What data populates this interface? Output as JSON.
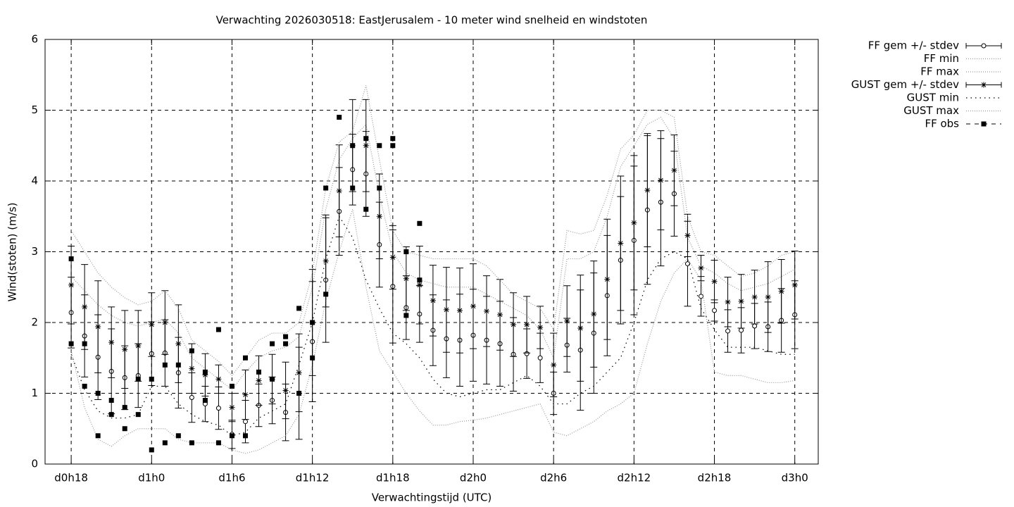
{
  "chart_data": {
    "type": "line",
    "title": "Verwachting 2026030518: EastJerusalem - 10 meter wind snelheid en windstoten",
    "xlabel": "Verwachtingstijd (UTC)",
    "ylabel": "Wind(stoten) (m/s)",
    "xlim": [
      16.05,
      73.75
    ],
    "ylim": [
      0,
      6
    ],
    "yticks": [
      0,
      1,
      2,
      3,
      4,
      5,
      6
    ],
    "xticks": [
      {
        "value": 18,
        "label": "d0h18"
      },
      {
        "value": 24,
        "label": "d1h0"
      },
      {
        "value": 30,
        "label": "d1h6"
      },
      {
        "value": 36,
        "label": "d1h12"
      },
      {
        "value": 42,
        "label": "d1h18"
      },
      {
        "value": 48,
        "label": "d2h0"
      },
      {
        "value": 54,
        "label": "d2h6"
      },
      {
        "value": 60,
        "label": "d2h12"
      },
      {
        "value": 66,
        "label": "d2h18"
      },
      {
        "value": 72,
        "label": "d3h0"
      }
    ],
    "grid": true,
    "legend": "outside-right",
    "x": [
      18,
      19,
      20,
      21,
      22,
      23,
      24,
      25,
      26,
      27,
      28,
      29,
      30,
      31,
      32,
      33,
      34,
      35,
      36,
      37,
      38,
      39,
      40,
      41,
      42,
      43,
      44,
      45,
      46,
      47,
      48,
      49,
      50,
      51,
      52,
      53,
      54,
      55,
      56,
      57,
      58,
      59,
      60,
      61,
      62,
      63,
      64,
      65,
      66,
      67,
      68,
      69,
      70,
      71,
      72
    ],
    "series": [
      {
        "name": "FF gem +/- stdev",
        "style": "errorbar-circle",
        "color": "#000000",
        "values": [
          2.14,
          1.81,
          1.51,
          1.31,
          1.22,
          1.25,
          1.56,
          1.57,
          1.29,
          0.94,
          0.85,
          0.79,
          0.42,
          0.6,
          0.83,
          0.9,
          0.73,
          1.0,
          1.73,
          2.6,
          3.57,
          4.16,
          4.1,
          3.1,
          2.51,
          2.21,
          2.12,
          1.89,
          1.77,
          1.75,
          1.82,
          1.75,
          1.7,
          1.55,
          1.56,
          1.5,
          1.0,
          1.68,
          1.61,
          1.85,
          2.38,
          2.88,
          3.16,
          3.59,
          3.7,
          3.82,
          2.83,
          2.37,
          2.17,
          1.88,
          1.89,
          1.95,
          1.94,
          2.03,
          2.11
        ],
        "errors": [
          0.5,
          0.58,
          0.6,
          0.6,
          0.45,
          0.45,
          0.45,
          0.47,
          0.5,
          0.35,
          0.25,
          0.3,
          0.2,
          0.3,
          0.3,
          0.33,
          0.4,
          0.65,
          0.85,
          0.88,
          0.62,
          0.5,
          0.6,
          0.6,
          0.8,
          0.45,
          0.4,
          0.5,
          0.55,
          0.65,
          0.65,
          0.62,
          0.6,
          0.52,
          0.35,
          0.35,
          0.3,
          0.38,
          0.85,
          0.85,
          0.85,
          0.9,
          1.05,
          1.05,
          0.9,
          0.6,
          0.6,
          0.28,
          0.15,
          0.3,
          0.32,
          0.32,
          0.35,
          0.45,
          0.48
        ]
      },
      {
        "name": "FF min",
        "style": "dotted-fine",
        "color": "#999999",
        "values": [
          1.6,
          0.8,
          0.35,
          0.25,
          0.4,
          0.5,
          0.5,
          0.5,
          0.35,
          0.3,
          0.3,
          0.3,
          0.2,
          0.15,
          0.2,
          0.3,
          0.4,
          0.7,
          1.4,
          2.3,
          3.0,
          3.6,
          2.5,
          1.6,
          1.3,
          1.0,
          0.75,
          0.55,
          0.55,
          0.6,
          0.62,
          0.65,
          0.7,
          0.75,
          0.8,
          0.85,
          0.45,
          0.4,
          0.5,
          0.6,
          0.75,
          0.85,
          1.0,
          1.7,
          2.3,
          2.7,
          2.9,
          2.6,
          1.3,
          1.25,
          1.25,
          1.2,
          1.15,
          1.15,
          1.18
        ]
      },
      {
        "name": "FF max",
        "style": "dotted-fine",
        "color": "#999999",
        "values": [
          2.65,
          2.45,
          2.25,
          2.1,
          2.0,
          1.95,
          2.0,
          2.05,
          1.85,
          1.5,
          1.35,
          1.2,
          1.05,
          1.3,
          1.5,
          1.6,
          1.65,
          1.8,
          2.5,
          3.6,
          4.3,
          4.6,
          4.8,
          3.8,
          3.0,
          2.7,
          2.6,
          2.55,
          2.5,
          2.5,
          2.5,
          2.4,
          2.3,
          2.2,
          2.1,
          1.9,
          1.5,
          2.9,
          2.9,
          3.0,
          3.5,
          4.2,
          4.5,
          4.8,
          4.9,
          4.6,
          3.2,
          2.8,
          2.7,
          2.55,
          2.45,
          2.5,
          2.55,
          2.65,
          2.75
        ]
      },
      {
        "name": "GUST gem +/- stdev",
        "style": "errorbar-star",
        "color": "#000000",
        "values": [
          2.53,
          2.22,
          1.94,
          1.72,
          1.62,
          1.67,
          1.97,
          2.0,
          1.7,
          1.35,
          1.26,
          1.2,
          0.8,
          0.98,
          1.18,
          1.2,
          1.04,
          1.29,
          2.0,
          2.87,
          3.86,
          4.5,
          4.5,
          3.5,
          2.92,
          2.62,
          2.53,
          2.31,
          2.18,
          2.17,
          2.23,
          2.16,
          2.11,
          1.97,
          1.97,
          1.93,
          1.4,
          2.02,
          1.92,
          2.12,
          2.61,
          3.12,
          3.41,
          3.87,
          4.01,
          4.15,
          3.23,
          2.77,
          2.58,
          2.29,
          2.3,
          2.36,
          2.36,
          2.44,
          2.53
        ],
        "errors": [
          0.55,
          0.6,
          0.65,
          0.5,
          0.55,
          0.5,
          0.45,
          0.45,
          0.55,
          0.35,
          0.3,
          0.2,
          0.2,
          0.35,
          0.35,
          0.35,
          0.4,
          0.55,
          0.75,
          0.65,
          0.65,
          0.65,
          0.65,
          0.6,
          0.45,
          0.45,
          0.55,
          0.5,
          0.6,
          0.6,
          0.6,
          0.5,
          0.5,
          0.45,
          0.4,
          0.3,
          0.45,
          0.5,
          0.75,
          0.75,
          0.85,
          0.95,
          0.95,
          0.8,
          0.7,
          0.5,
          0.3,
          0.18,
          0.3,
          0.35,
          0.38,
          0.38,
          0.5,
          0.45,
          0.48
        ]
      },
      {
        "name": "GUST min",
        "style": "dotted-coarse",
        "color": "#000000",
        "values": [
          1.55,
          1.05,
          0.75,
          0.65,
          0.65,
          0.7,
          1.1,
          1.1,
          0.85,
          0.7,
          0.6,
          0.55,
          0.4,
          0.45,
          0.65,
          0.75,
          0.85,
          1.4,
          2.0,
          2.9,
          3.5,
          3.2,
          2.6,
          2.2,
          1.85,
          1.7,
          1.5,
          1.2,
          1.0,
          0.95,
          1.0,
          1.05,
          1.05,
          1.15,
          1.25,
          1.1,
          0.85,
          0.85,
          1.0,
          1.1,
          1.3,
          1.5,
          2.0,
          2.6,
          2.9,
          3.0,
          2.9,
          2.2,
          1.9,
          1.65,
          1.65,
          1.65,
          1.6,
          1.55,
          1.55
        ]
      },
      {
        "name": "GUST max",
        "style": "dotted-fine",
        "color": "#999999",
        "values": [
          3.3,
          3.0,
          2.7,
          2.5,
          2.35,
          2.25,
          2.3,
          2.45,
          2.2,
          1.75,
          1.6,
          1.45,
          1.25,
          1.5,
          1.75,
          1.85,
          1.85,
          2.0,
          2.7,
          3.9,
          4.55,
          4.7,
          5.35,
          4.3,
          3.3,
          3.0,
          2.95,
          2.9,
          2.9,
          2.9,
          2.9,
          2.8,
          2.6,
          2.4,
          2.3,
          2.2,
          1.9,
          3.3,
          3.25,
          3.3,
          3.8,
          4.45,
          4.65,
          5.0,
          5.0,
          4.9,
          3.5,
          3.0,
          2.95,
          2.8,
          2.65,
          2.7,
          2.8,
          2.95,
          3.0
        ]
      },
      {
        "name": "FF obs",
        "style": "points-square",
        "color": "#000000",
        "x": [
          18,
          18,
          19,
          19,
          20,
          20,
          21,
          21,
          22,
          22,
          23,
          23,
          24,
          24,
          25,
          25,
          26,
          26,
          27,
          27,
          28,
          28,
          29,
          29,
          30,
          30,
          31,
          31,
          32,
          33,
          33,
          34,
          34,
          35,
          35,
          36,
          36,
          37,
          37,
          38,
          39,
          39,
          40,
          40,
          41,
          41,
          42,
          42,
          43,
          43,
          44,
          44
        ],
        "values": [
          2.9,
          1.7,
          1.7,
          1.1,
          1.0,
          0.4,
          0.9,
          0.7,
          0.8,
          0.5,
          1.2,
          0.7,
          1.2,
          0.2,
          1.4,
          0.3,
          1.4,
          0.4,
          1.6,
          0.3,
          1.3,
          0.9,
          1.9,
          0.3,
          1.1,
          0.4,
          1.5,
          0.4,
          1.3,
          1.7,
          1.2,
          1.8,
          1.7,
          2.2,
          1.0,
          2.0,
          1.5,
          3.9,
          2.4,
          4.9,
          4.5,
          3.9,
          4.6,
          3.6,
          4.5,
          3.9,
          4.6,
          4.5,
          3.0,
          2.1,
          3.4,
          2.6
        ]
      }
    ]
  }
}
